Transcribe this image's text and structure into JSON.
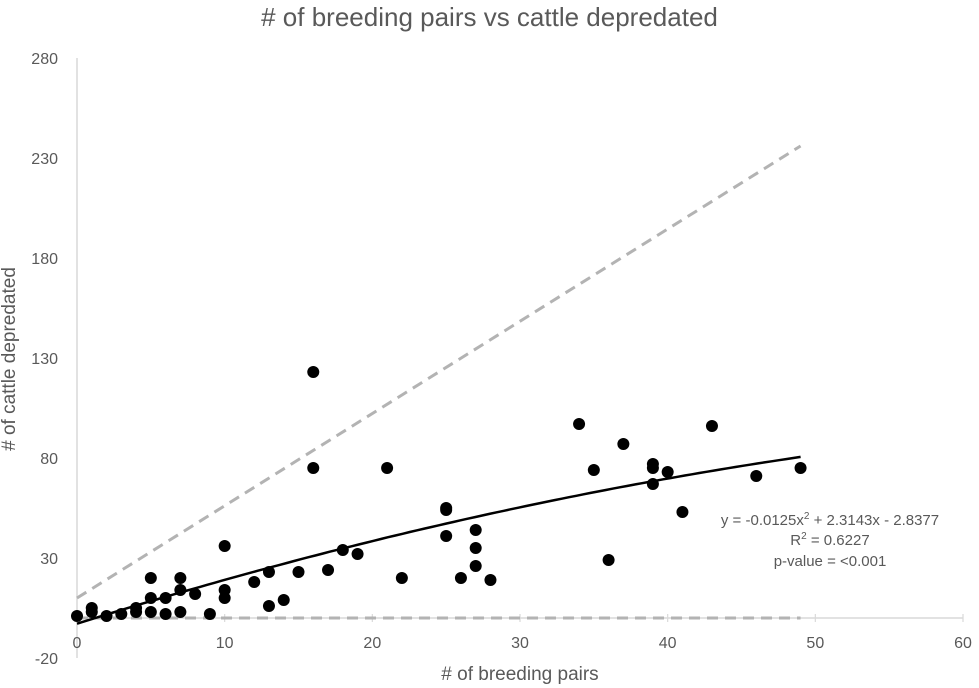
{
  "chart_data": {
    "type": "scatter",
    "title": "# of breeding pairs vs cattle depredated",
    "xlabel": "# of breeding pairs",
    "ylabel": "# of cattle depredated",
    "xlim": [
      0,
      60
    ],
    "ylim": [
      -20,
      280
    ],
    "xticks": [
      "0",
      "10",
      "20",
      "30",
      "40",
      "50",
      "60"
    ],
    "yticks": [
      "-20",
      "30",
      "80",
      "130",
      "180",
      "230",
      "280"
    ],
    "grid": false,
    "points": [
      [
        0,
        1
      ],
      [
        1,
        5
      ],
      [
        1,
        3
      ],
      [
        2,
        1
      ],
      [
        3,
        2
      ],
      [
        4,
        5
      ],
      [
        4,
        3
      ],
      [
        5,
        10
      ],
      [
        5,
        20
      ],
      [
        5,
        3
      ],
      [
        6,
        10
      ],
      [
        6,
        2
      ],
      [
        7,
        20
      ],
      [
        7,
        14
      ],
      [
        7,
        3
      ],
      [
        8,
        12
      ],
      [
        9,
        2
      ],
      [
        10,
        36
      ],
      [
        10,
        14
      ],
      [
        10,
        10
      ],
      [
        12,
        18
      ],
      [
        13,
        23
      ],
      [
        13,
        6
      ],
      [
        14,
        9
      ],
      [
        15,
        23
      ],
      [
        16,
        123
      ],
      [
        16,
        75
      ],
      [
        17,
        24
      ],
      [
        18,
        34
      ],
      [
        19,
        32
      ],
      [
        21,
        75
      ],
      [
        22,
        20
      ],
      [
        25,
        55
      ],
      [
        25,
        54
      ],
      [
        25,
        41
      ],
      [
        26,
        20
      ],
      [
        27,
        44
      ],
      [
        27,
        35
      ],
      [
        27,
        26
      ],
      [
        28,
        19
      ],
      [
        34,
        97
      ],
      [
        35,
        74
      ],
      [
        36,
        29
      ],
      [
        37,
        87
      ],
      [
        39,
        77
      ],
      [
        39,
        75
      ],
      [
        39,
        67
      ],
      [
        40,
        73
      ],
      [
        41,
        53
      ],
      [
        43,
        96
      ],
      [
        46,
        71
      ],
      [
        49,
        75
      ]
    ],
    "trendline": {
      "a": -0.0125,
      "b": 2.3143,
      "c": -2.8377,
      "x_range": [
        0,
        49
      ],
      "color": "#000000",
      "style": "solid"
    },
    "upper_band": {
      "x": [
        0,
        49
      ],
      "y": [
        10,
        236
      ],
      "color": "#b3b3b3",
      "style": "dashed"
    },
    "lower_band": {
      "x": [
        0,
        49
      ],
      "y": [
        0,
        0
      ],
      "color": "#b3b3b3",
      "style": "dashed"
    },
    "annotation": {
      "equation_lead": "y = -0.0125x",
      "equation_tail": " + 2.3143x - 2.8377",
      "r2_lead": "R",
      "r2_tail": " = 0.6227",
      "pvalue": "p-value = <0.001",
      "superscript": "2"
    },
    "point_color": "#000000",
    "axis_color": "#d9d9d9",
    "text_color": "#595959"
  }
}
